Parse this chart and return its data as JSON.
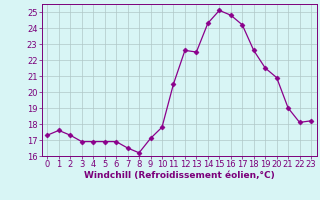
{
  "x": [
    0,
    1,
    2,
    3,
    4,
    5,
    6,
    7,
    8,
    9,
    10,
    11,
    12,
    13,
    14,
    15,
    16,
    17,
    18,
    19,
    20,
    21,
    22,
    23
  ],
  "y": [
    17.3,
    17.6,
    17.3,
    16.9,
    16.9,
    16.9,
    16.9,
    16.5,
    16.2,
    17.1,
    17.8,
    20.5,
    22.6,
    22.5,
    24.3,
    25.1,
    24.8,
    24.2,
    22.6,
    21.5,
    20.9,
    19.0,
    18.1,
    18.2
  ],
  "line_color": "#8B008B",
  "marker": "D",
  "marker_size": 2.5,
  "bg_color": "#d8f5f5",
  "grid_color": "#b0c8c8",
  "xlabel": "Windchill (Refroidissement éolien,°C)",
  "ylim": [
    16,
    25.5
  ],
  "xlim": [
    -0.5,
    23.5
  ],
  "yticks": [
    16,
    17,
    18,
    19,
    20,
    21,
    22,
    23,
    24,
    25
  ],
  "xticks": [
    0,
    1,
    2,
    3,
    4,
    5,
    6,
    7,
    8,
    9,
    10,
    11,
    12,
    13,
    14,
    15,
    16,
    17,
    18,
    19,
    20,
    21,
    22,
    23
  ],
  "xlabel_fontsize": 6.5,
  "tick_fontsize": 6.0,
  "tick_color": "#7B007B",
  "spine_color": "#7B007B",
  "xlabel_color": "#7B007B"
}
